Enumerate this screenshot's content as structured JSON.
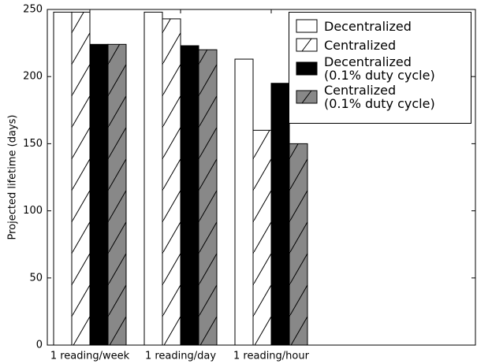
{
  "chart_data": {
    "type": "bar",
    "y_label": "Projected lifetime (days)",
    "categories": [
      "1 reading/week",
      "1 reading/day",
      "1 reading/hour"
    ],
    "series": [
      {
        "name": "Decentralized",
        "color": "#ffffff",
        "hatch": false,
        "values": [
          248,
          248,
          213
        ]
      },
      {
        "name": "Centralized",
        "color": "#ffffff",
        "hatch": true,
        "values": [
          248,
          243,
          160
        ]
      },
      {
        "name": "Decentralized\n(0.1% duty cycle)",
        "color": "#000000",
        "hatch": false,
        "values": [
          224,
          223,
          195
        ]
      },
      {
        "name": "Centralized\n(0.1% duty cycle)",
        "color": "#888888",
        "hatch": true,
        "values": [
          224,
          220,
          150
        ]
      }
    ],
    "ylim": [
      0,
      250
    ],
    "yticks": [
      0,
      50,
      100,
      150,
      200,
      250
    ],
    "grid": false,
    "legend": "upper right"
  }
}
